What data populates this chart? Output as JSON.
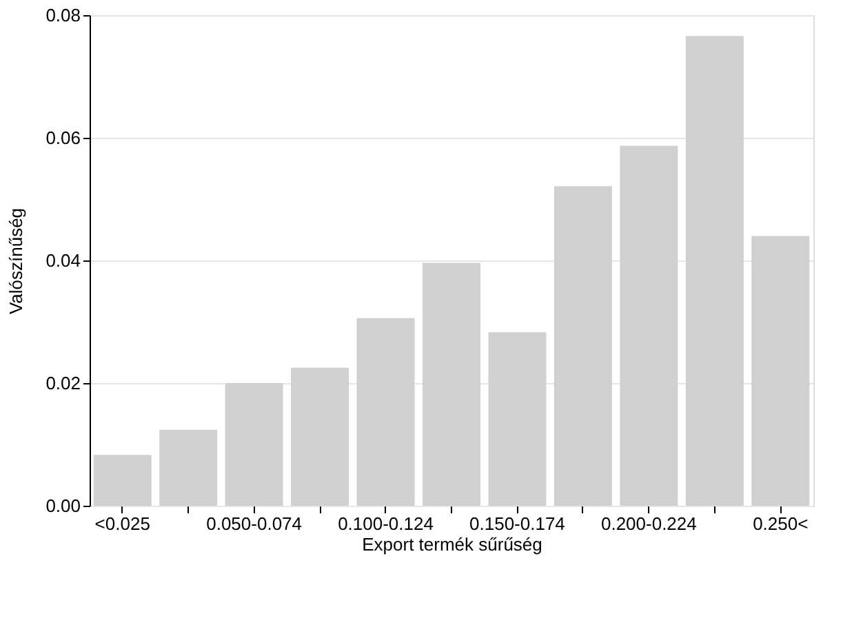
{
  "chart_data": {
    "type": "bar",
    "xlabel": "Export termék sűrűség",
    "ylabel": "Valószínűség",
    "categories": [
      "<0.025",
      null,
      "0.050-0.074",
      null,
      "0.100-0.124",
      null,
      "0.150-0.174",
      null,
      "0.200-0.224",
      null,
      "0.250<"
    ],
    "values": [
      0.0083,
      0.0124,
      0.02,
      0.0225,
      0.0306,
      0.0396,
      0.0283,
      0.0521,
      0.0587,
      0.0766,
      0.044
    ],
    "color": "#d0d0d0",
    "ylim": [
      0,
      0.08
    ],
    "yticks": [
      {
        "value": 0,
        "label": "0.00"
      },
      {
        "value": 0.02,
        "label": "0.02"
      },
      {
        "value": 0.04,
        "label": "0.04"
      },
      {
        "value": 0.06,
        "label": "0.06"
      },
      {
        "value": 0.08,
        "label": "0.08"
      }
    ],
    "grid": "y"
  }
}
